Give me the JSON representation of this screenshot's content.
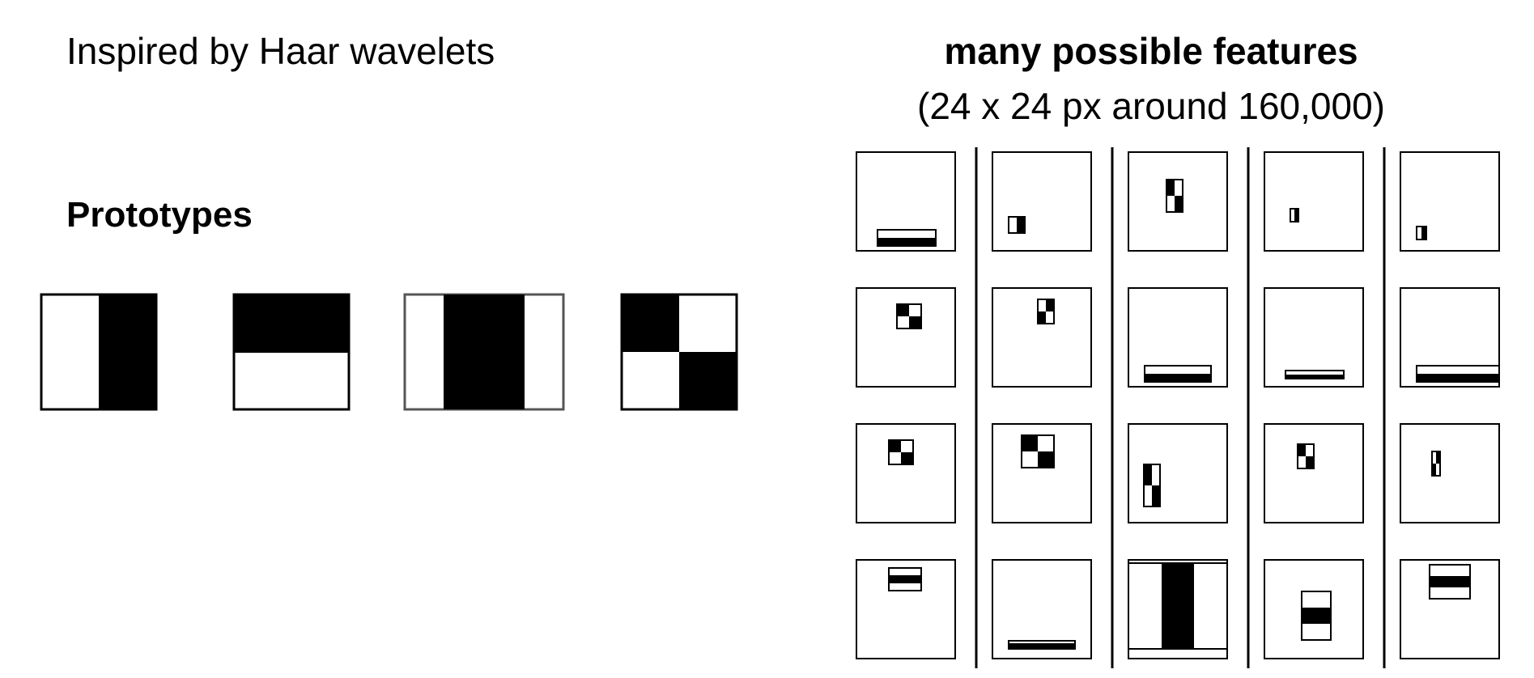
{
  "intro": {
    "title": "Inspired by Haar wavelets"
  },
  "prototypes": {
    "heading": "Prototypes",
    "items": [
      {
        "name": "edge-vertical"
      },
      {
        "name": "edge-horizontal"
      },
      {
        "name": "line-vertical"
      },
      {
        "name": "four-rectangle"
      }
    ]
  },
  "features": {
    "title": "many possible features",
    "subtitle": "(24 x 24 px around 160,000)",
    "grid": {
      "rows": 4,
      "columns": 5
    },
    "colors": {
      "fill": "#000000",
      "background": "#ffffff",
      "stroke": "#000000"
    }
  }
}
